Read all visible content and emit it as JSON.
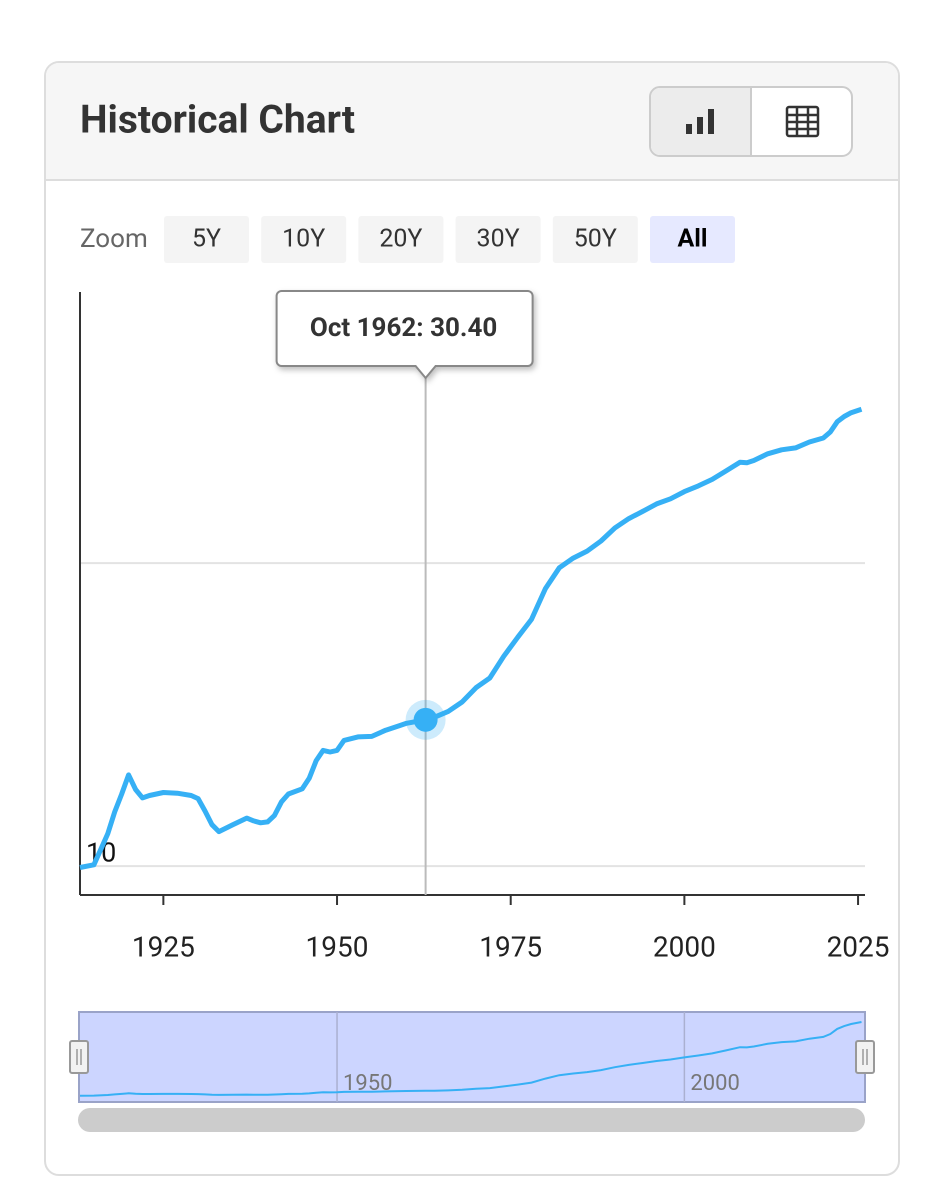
{
  "header": {
    "title": "Historical Chart"
  },
  "zoom": {
    "label": "Zoom",
    "buttons": [
      "5Y",
      "10Y",
      "20Y",
      "30Y",
      "50Y",
      "All"
    ],
    "active": "All"
  },
  "chart_data": {
    "type": "line",
    "log_y": true,
    "grid": true,
    "xlim": [
      1913,
      2026
    ],
    "ylim": [
      8.03,
      785
    ],
    "xticks": [
      1925,
      1950,
      1975,
      2000,
      2025
    ],
    "yticks": [
      10,
      {
        "value": 100,
        "label": null
      }
    ],
    "series": [
      {
        "color": "#36b0f5",
        "x": [
          1913,
          1915,
          1917,
          1918,
          1919,
          1920,
          1921,
          1922,
          1923,
          1925,
          1927,
          1929,
          1930,
          1931,
          1932,
          1933,
          1935,
          1937,
          1938,
          1939,
          1940,
          1941,
          1942,
          1943,
          1945,
          1946,
          1947,
          1948,
          1949,
          1950,
          1951,
          1953,
          1955,
          1957,
          1959,
          1960,
          1962.75,
          1964,
          1966,
          1968,
          1970,
          1972,
          1974,
          1976,
          1978,
          1980,
          1982,
          1984,
          1986,
          1988,
          1990,
          1992,
          1994,
          1996,
          1998,
          2000,
          2002,
          2004,
          2006,
          2008,
          2009,
          2010,
          2012,
          2014,
          2016,
          2018,
          2020,
          2021,
          2022,
          2023,
          2024,
          2025.5
        ],
        "values": [
          9.9,
          10.1,
          12.8,
          15.1,
          17.3,
          20.0,
          17.9,
          16.8,
          17.1,
          17.5,
          17.4,
          17.1,
          16.7,
          15.2,
          13.7,
          13.0,
          13.7,
          14.4,
          14.1,
          13.9,
          14.0,
          14.7,
          16.3,
          17.3,
          18.0,
          19.5,
          22.3,
          24.1,
          23.8,
          24.1,
          26.0,
          26.7,
          26.8,
          28.1,
          29.1,
          29.6,
          30.4,
          31.0,
          32.4,
          34.8,
          38.8,
          41.8,
          49.3,
          56.9,
          65.2,
          82.4,
          96.5,
          103.9,
          109.6,
          118.3,
          130.7,
          140.3,
          148.2,
          156.9,
          163.0,
          172.2,
          179.9,
          188.9,
          201.6,
          215.3,
          214.5,
          218.1,
          229.6,
          236.7,
          240.0,
          251.1,
          258.8,
          271.0,
          292.7,
          304.7,
          313.7,
          322.0
        ]
      }
    ],
    "tooltip": {
      "text": "Oct 1962: 30.40",
      "x": 1962.75,
      "y": 30.4
    },
    "navigator_xticks": [
      1950,
      2000
    ]
  }
}
